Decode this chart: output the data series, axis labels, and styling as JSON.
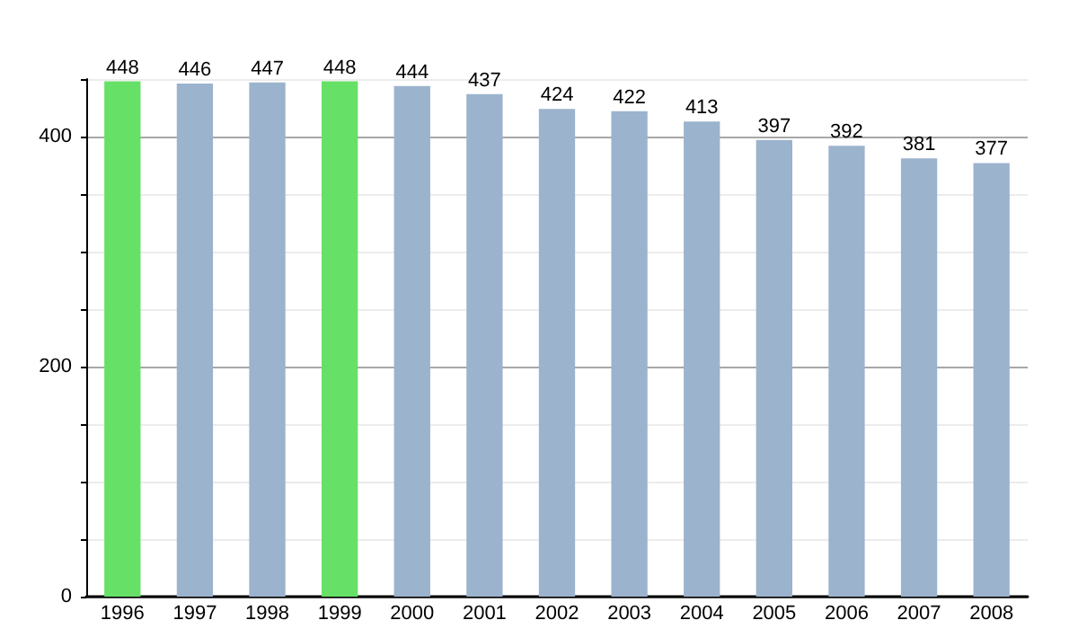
{
  "chart_data": {
    "type": "bar",
    "categories": [
      "1996",
      "1997",
      "1998",
      "1999",
      "2000",
      "2001",
      "2002",
      "2003",
      "2004",
      "2005",
      "2006",
      "2007",
      "2008"
    ],
    "values": [
      448,
      446,
      447,
      448,
      444,
      437,
      424,
      422,
      413,
      397,
      392,
      381,
      377
    ],
    "colors": [
      "#66e066",
      "#9bb3cd",
      "#9bb3cd",
      "#66e066",
      "#9bb3cd",
      "#9bb3cd",
      "#9bb3cd",
      "#9bb3cd",
      "#9bb3cd",
      "#9bb3cd",
      "#9bb3cd",
      "#9bb3cd",
      "#9bb3cd"
    ],
    "ylim": [
      0,
      450
    ],
    "yticks": [
      0,
      {
        "value": 50,
        "label": null
      },
      {
        "value": 100,
        "label": null
      },
      {
        "value": 150,
        "label": null
      },
      200,
      {
        "value": 250,
        "label": null
      },
      {
        "value": 300,
        "label": null
      },
      {
        "value": 350,
        "label": null
      },
      400,
      {
        "value": 450,
        "label": null
      }
    ],
    "grid": "y",
    "data_labels": true
  }
}
